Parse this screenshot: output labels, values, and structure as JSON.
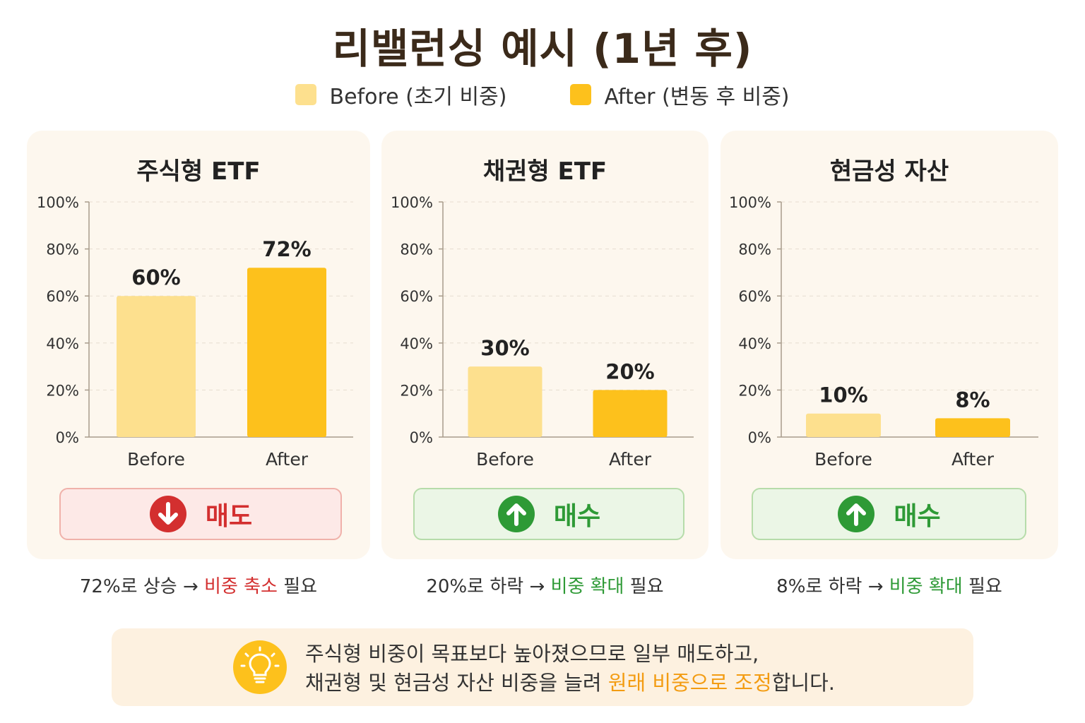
{
  "title": "리밸런싱 예시 (1년 후)",
  "legend": {
    "before": {
      "label": "Before (초기 비중)",
      "color": "#fde08e"
    },
    "after": {
      "label": "After (변동 후 비중)",
      "color": "#fdc11c"
    }
  },
  "chart_data": [
    {
      "type": "bar",
      "title": "주식형 ETF",
      "categories": [
        "Before",
        "After"
      ],
      "values": [
        60,
        72
      ],
      "value_labels": [
        "60%",
        "72%"
      ],
      "ylim": [
        0,
        100
      ],
      "yticks": [
        "0%",
        "20%",
        "40%",
        "60%",
        "80%",
        "100%"
      ],
      "ytick_values": [
        0,
        20,
        40,
        60,
        80,
        100
      ],
      "grid": true
    },
    {
      "type": "bar",
      "title": "채권형 ETF",
      "categories": [
        "Before",
        "After"
      ],
      "values": [
        30,
        20
      ],
      "value_labels": [
        "30%",
        "20%"
      ],
      "ylim": [
        0,
        100
      ],
      "yticks": [
        "0%",
        "20%",
        "40%",
        "60%",
        "80%",
        "100%"
      ],
      "ytick_values": [
        0,
        20,
        40,
        60,
        80,
        100
      ],
      "grid": true
    },
    {
      "type": "bar",
      "title": "현금성 자산",
      "categories": [
        "Before",
        "After"
      ],
      "values": [
        10,
        8
      ],
      "value_labels": [
        "10%",
        "8%"
      ],
      "ylim": [
        0,
        100
      ],
      "yticks": [
        "0%",
        "20%",
        "40%",
        "60%",
        "80%",
        "100%"
      ],
      "ytick_values": [
        0,
        20,
        40,
        60,
        80,
        100
      ],
      "grid": true
    }
  ],
  "panels": [
    {
      "action": {
        "label": "매도",
        "type": "sell",
        "icon": "arrow-down-icon",
        "color": "#d32f2f"
      },
      "caption": {
        "prefix": "72%로 상승 → ",
        "highlight": "비중 축소",
        "suffix": " 필요",
        "highlight_color": "#d32f2f"
      }
    },
    {
      "action": {
        "label": "매수",
        "type": "buy",
        "icon": "arrow-up-icon",
        "color": "#2e9a36"
      },
      "caption": {
        "prefix": "20%로 하락 → ",
        "highlight": "비중 확대",
        "suffix": " 필요",
        "highlight_color": "#2e9a36"
      }
    },
    {
      "action": {
        "label": "매수",
        "type": "buy",
        "icon": "arrow-up-icon",
        "color": "#2e9a36"
      },
      "caption": {
        "prefix": "8%로 하락 → ",
        "highlight": "비중 확대",
        "suffix": " 필요",
        "highlight_color": "#2e9a36"
      }
    }
  ],
  "tip": {
    "icon": "lightbulb-icon",
    "line1": "주식형 비중이 목표보다 높아졌으므로 일부 매도하고,",
    "line2_prefix": "채권형 및 현금성 자산 비중을 늘려 ",
    "line2_highlight": "원래 비중으로 조정",
    "line2_suffix": "합니다.",
    "highlight_color": "#f39c12"
  }
}
